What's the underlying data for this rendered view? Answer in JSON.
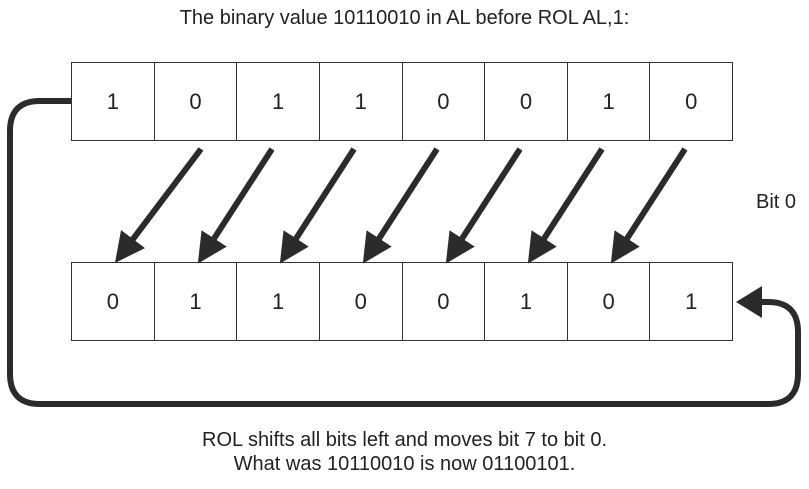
{
  "title": "The binary value 10110010 in AL before ROL AL,1:",
  "before_bits": [
    "1",
    "0",
    "1",
    "1",
    "0",
    "0",
    "1",
    "0"
  ],
  "after_bits": [
    "0",
    "1",
    "1",
    "0",
    "0",
    "1",
    "0",
    "1"
  ],
  "bit0_label": "Bit 0",
  "caption": {
    "line1": "ROL shifts all bits left and moves bit 7 to bit 0.",
    "line2": "What was 10110010 is now 01100101."
  },
  "colors": {
    "line": "#2b2b2b",
    "border": "#333333",
    "text": "#222222"
  }
}
